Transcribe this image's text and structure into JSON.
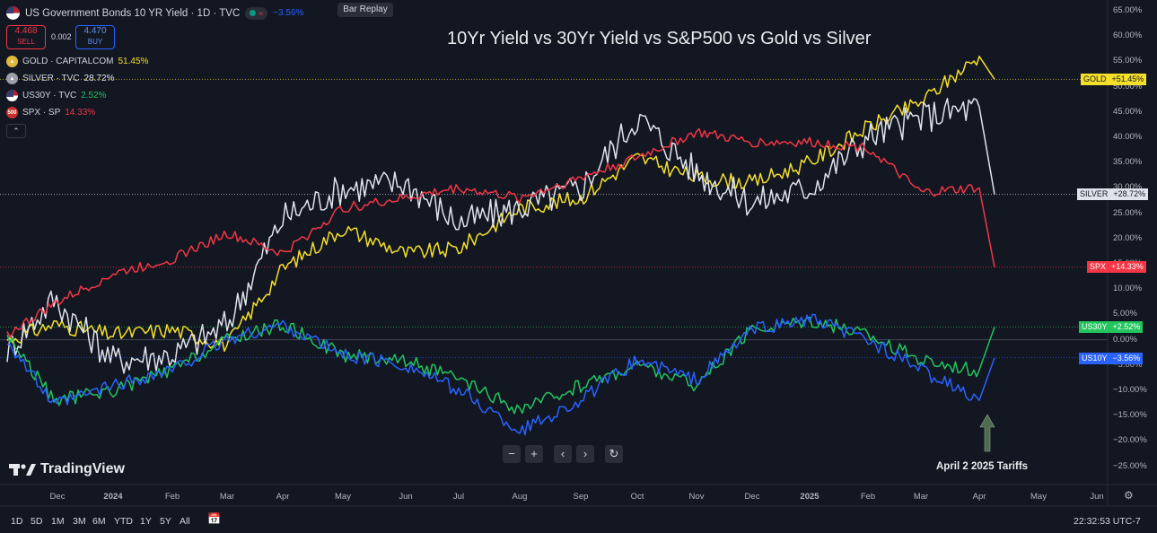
{
  "header": {
    "title": "US Government Bonds 10 YR Yield · 1D · TVC",
    "change": "−3.56%",
    "bar_replay_label": "Bar Replay",
    "sell": {
      "price": "4.468",
      "label": "SELL"
    },
    "spread": "0.002",
    "buy": {
      "price": "4.470",
      "label": "BUY"
    }
  },
  "legend": [
    {
      "name": "GOLD · CAPITALCOM",
      "value": "51.45%",
      "color": "#f4df2a"
    },
    {
      "name": "SILVER · TVC",
      "value": "28.72%",
      "color": "#e0e3eb"
    },
    {
      "name": "US30Y · TVC",
      "value": "2.52%",
      "color": "#22c55e"
    },
    {
      "name": "SPX · SP",
      "value": "14.33%",
      "color": "#f23645"
    }
  ],
  "spx_icon_text": "500",
  "collapse_icon": "chevron-up-icon",
  "annotation_title": "10Yr Yield vs 30Yr Yield vs S&P500 vs Gold vs Silver",
  "annotation_tariffs": "April 2 2025 Tariffs",
  "watermark": "TradingView",
  "price_tags": [
    {
      "symbol": "GOLD",
      "value": "+51.45%",
      "bg": "#f4df2a",
      "fg": "#131722"
    },
    {
      "symbol": "SILVER",
      "value": "+28.72%",
      "bg": "#e0e3eb",
      "fg": "#131722"
    },
    {
      "symbol": "SPX",
      "value": "+14.33%",
      "bg": "#f23645",
      "fg": "#ffffff"
    },
    {
      "symbol": "US30Y",
      "value": "+2.52%",
      "bg": "#22c55e",
      "fg": "#ffffff"
    },
    {
      "symbol": "US10Y",
      "value": "−3.56%",
      "bg": "#2962ff",
      "fg": "#ffffff"
    }
  ],
  "y_axis_labels": [
    "65.00%",
    "60.00%",
    "55.00%",
    "50.00%",
    "45.00%",
    "40.00%",
    "35.00%",
    "30.00%",
    "25.00%",
    "20.00%",
    "15.00%",
    "10.00%",
    "5.00%",
    "0.00%",
    "−5.00%",
    "−10.00%",
    "−15.00%",
    "−20.00%",
    "−25.00%"
  ],
  "x_axis_labels": [
    "Dec",
    "2024",
    "Feb",
    "Mar",
    "Apr",
    "May",
    "Jun",
    "Jul",
    "Aug",
    "Sep",
    "Oct",
    "Nov",
    "Dec",
    "2025",
    "Feb",
    "Mar",
    "Apr",
    "May",
    "Jun"
  ],
  "nav_controls": [
    "−",
    "+",
    "‹",
    "›",
    "↻"
  ],
  "timeframes": [
    "1D",
    "5D",
    "1M",
    "3M",
    "6M",
    "YTD",
    "1Y",
    "5Y",
    "All"
  ],
  "clock": "22:32:53 UTC-7",
  "chart_data": {
    "type": "line",
    "y_unit": "percent change",
    "ylim": [
      -25,
      65
    ],
    "x": [
      "2023-11",
      "2023-12",
      "2024-01",
      "2024-02",
      "2024-03",
      "2024-04",
      "2024-05",
      "2024-06",
      "2024-07",
      "2024-08",
      "2024-09",
      "2024-10",
      "2024-11",
      "2024-12",
      "2025-01",
      "2025-02",
      "2025-03",
      "2025-04-02",
      "2025-04-08"
    ],
    "series": [
      {
        "name": "GOLD",
        "color": "#f4df2a",
        "values": [
          0,
          3,
          1,
          2,
          -1,
          14,
          22,
          17,
          18,
          26,
          28,
          36,
          32,
          31,
          35,
          42,
          47,
          56,
          51.45
        ]
      },
      {
        "name": "SILVER",
        "color": "#e0e3eb",
        "values": [
          -2,
          8,
          -4,
          -3,
          3,
          24,
          30,
          31,
          23,
          26,
          30,
          44,
          33,
          27,
          30,
          40,
          44,
          46,
          28.72
        ]
      },
      {
        "name": "SPX",
        "color": "#f23645",
        "values": [
          1,
          7,
          13,
          16,
          21,
          17,
          26,
          28,
          30,
          28,
          32,
          36,
          41,
          39,
          39,
          38,
          29,
          30,
          14.33
        ]
      },
      {
        "name": "US30Y",
        "color": "#22c55e",
        "values": [
          1,
          -12,
          -10,
          -6,
          0,
          3,
          -3,
          -4,
          -8,
          -14,
          -9,
          -5,
          -9,
          2,
          4,
          1,
          -4,
          -6,
          2.52
        ]
      },
      {
        "name": "US10Y",
        "color": "#2962ff",
        "values": [
          0,
          -13,
          -9,
          -6,
          0,
          3,
          -3,
          -5,
          -10,
          -18,
          -12,
          -4,
          -8,
          2,
          4,
          0,
          -6,
          -12,
          -3.56
        ]
      }
    ]
  }
}
